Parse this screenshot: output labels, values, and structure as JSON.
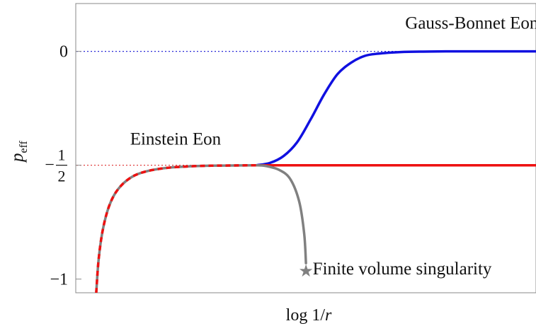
{
  "chart_data": {
    "type": "line",
    "xlabel": "log 1/r",
    "ylabel": "p",
    "ylabel_sub": "eff",
    "ylim": [
      -1.06,
      0.21
    ],
    "xlim": [
      0,
      10
    ],
    "yticks": [
      {
        "value": 0,
        "label": "0",
        "kind": "plain"
      },
      {
        "value": -0.5,
        "label": "−",
        "num": "1",
        "den": "2",
        "kind": "fraction"
      },
      {
        "value": -1,
        "label": "−1",
        "kind": "plain"
      }
    ],
    "reference_lines": [
      {
        "y": 0,
        "color": "#2a2ad8",
        "style": "dotted"
      },
      {
        "y": -0.5,
        "color": "#e04040",
        "style": "dotted"
      }
    ],
    "series": [
      {
        "color": "#1010e0",
        "style": "solid",
        "x": [
          3.8,
          4.1,
          4.4,
          4.7,
          5.0,
          5.3,
          5.6,
          5.9,
          6.2,
          6.5,
          7.0,
          7.5,
          8.0,
          9.0,
          10.0
        ],
        "y": [
          -0.5,
          -0.49,
          -0.46,
          -0.4,
          -0.3,
          -0.19,
          -0.1,
          -0.05,
          -0.02,
          -0.01,
          -0.003,
          -0.001,
          0,
          0,
          0
        ]
      },
      {
        "color": "#ee1111",
        "style": "solid",
        "x": [
          3.8,
          10.0
        ],
        "y": [
          -0.5,
          -0.5
        ]
      },
      {
        "color": "#808080",
        "style": "solid",
        "x": [
          3.8,
          4.0,
          4.3,
          4.55,
          4.75,
          4.86,
          4.9
        ],
        "y": [
          -0.5,
          -0.503,
          -0.52,
          -0.56,
          -0.66,
          -0.8,
          -0.93
        ]
      },
      {
        "color": "#ee1111",
        "dash_color": "#808080",
        "style": "dashed",
        "x": [
          0.25,
          0.3,
          0.38,
          0.5,
          0.65,
          0.85,
          1.1,
          1.4,
          1.8,
          2.3,
          2.8,
          3.3,
          3.8
        ],
        "y": [
          -1.06,
          -0.92,
          -0.8,
          -0.7,
          -0.63,
          -0.58,
          -0.545,
          -0.525,
          -0.512,
          -0.505,
          -0.502,
          -0.501,
          -0.5
        ]
      }
    ],
    "marker": {
      "x": 4.9,
      "y": -0.96,
      "symbol": "★",
      "color": "#808080"
    },
    "annotations": [
      {
        "text": "Gauss-Bonnet Eon",
        "x": 7.1,
        "y": 0.1
      },
      {
        "text": "Einstein Eon",
        "x": 1.0,
        "y": -0.41
      },
      {
        "text": "Finite volume singularity",
        "x": 5.05,
        "y": -0.98
      }
    ]
  }
}
